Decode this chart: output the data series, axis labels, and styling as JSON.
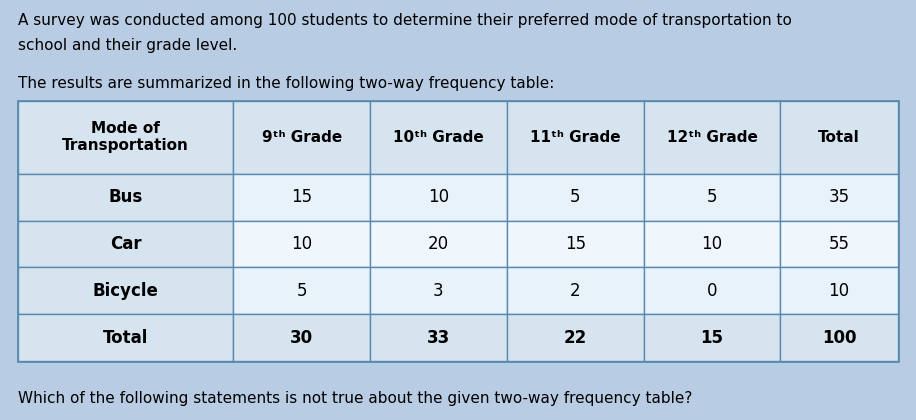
{
  "intro_line1": "A survey was conducted among 100 students to determine their preferred mode of transportation to",
  "intro_line2": "school and their grade level.",
  "intro_line3": "The results are summarized in the following two-way frequency table:",
  "question": "Which of the following statements is not true about the given two-way frequency table?",
  "col_headers": [
    "Mode of\nTransportation",
    "9ᵗʰ Grade",
    "10ᵗʰ Grade",
    "11ᵗʰ Grade",
    "12ᵗʰ Grade",
    "Total"
  ],
  "rows": [
    [
      "Bus",
      "15",
      "10",
      "5",
      "5",
      "35"
    ],
    [
      "Car",
      "10",
      "20",
      "15",
      "10",
      "55"
    ],
    [
      "Bicycle",
      "5",
      "3",
      "2",
      "0",
      "10"
    ],
    [
      "Total",
      "30",
      "33",
      "22",
      "15",
      "100"
    ]
  ],
  "bg_color": "#b8cce4",
  "header_bg": "#d6e4f0",
  "cell_bg_light": "#e8f2fa",
  "cell_bg_white": "#f0f7fc",
  "border_color": "#5a8ab0",
  "text_color": "#000000",
  "header_fontsize": 11,
  "cell_fontsize": 12,
  "intro_fontsize": 11,
  "question_fontsize": 11
}
